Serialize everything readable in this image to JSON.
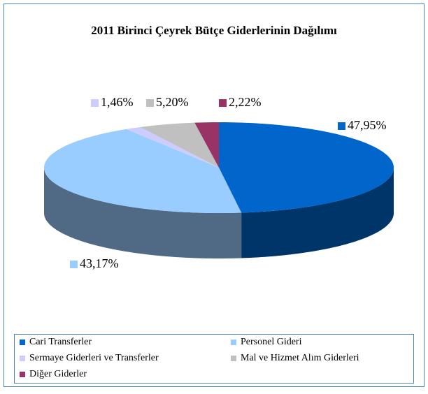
{
  "chart_data": {
    "type": "pie3d",
    "title": "2011 Birinci Çeyrek Bütçe Giderlerinin Dağılımı",
    "categories": [
      "Cari Transferler",
      "Personel Gideri",
      "Sermaye Giderleri ve Transferler",
      "Mal ve Hizmet Alım Giderleri",
      "Diğer Giderler"
    ],
    "values": [
      47.95,
      43.17,
      1.46,
      5.2,
      2.22
    ],
    "value_labels": [
      "47,95%",
      "43,17%",
      "1,46%",
      "5,20%",
      "2,22%"
    ],
    "colors": [
      "#0066cc",
      "#99ccff",
      "#ccccff",
      "#c0c0c0",
      "#993366"
    ],
    "legend": "bottom"
  }
}
